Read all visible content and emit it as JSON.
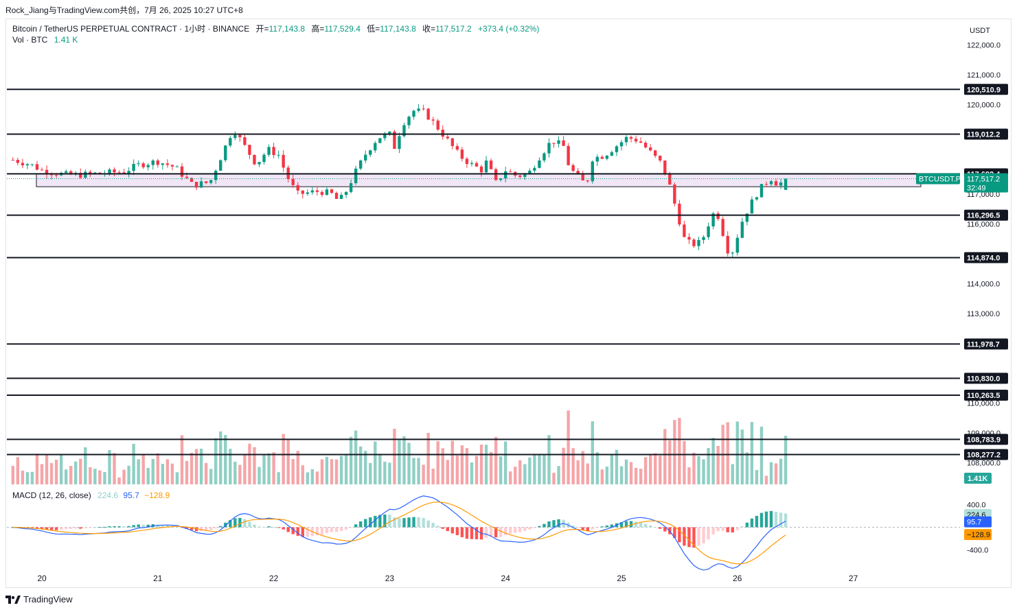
{
  "header": {
    "attribution": "Rock_Jiang与TradingView.com共创，7月 26, 2025 10:27 UTC+8"
  },
  "legend": {
    "symbol": "Bitcoin / TetherUS PERPETUAL CONTRACT · 1小时 · BINANCE",
    "open_label": "开=",
    "open": "117,143.8",
    "high_label": "高=",
    "high": "117,529.4",
    "low_label": "低=",
    "low": "117,143.8",
    "close_label": "收=",
    "close": "117,517.2",
    "change": "+373.4 (+0.32%)",
    "vol_label": "Vol · BTC",
    "vol": "1.41 K"
  },
  "macd_legend": {
    "label": "MACD (12, 26, close)",
    "hist": "224.6",
    "macd": "95.7",
    "signal": "−128.9"
  },
  "price_axis": {
    "currency": "USDT",
    "ticks": [
      {
        "value": 122000,
        "label": "122,000.0"
      },
      {
        "value": 121000,
        "label": "121,000.0"
      },
      {
        "value": 120000,
        "label": "120,000.0"
      },
      {
        "value": 117000,
        "label": "117,000.0"
      },
      {
        "value": 116000,
        "label": "116,000.0"
      },
      {
        "value": 114000,
        "label": "114,000.0"
      },
      {
        "value": 113000,
        "label": "113,000.0"
      },
      {
        "value": 110000,
        "label": "110,000.0"
      },
      {
        "value": 109000,
        "label": "109,000.0"
      },
      {
        "value": 108000,
        "label": "108,000.0"
      }
    ]
  },
  "levels": [
    {
      "value": 120510.9,
      "label": "120,510.9"
    },
    {
      "value": 119012.2,
      "label": "119,012.2"
    },
    {
      "value": 117682.4,
      "label": "117,682.4"
    },
    {
      "value": 116296.5,
      "label": "116,296.5"
    },
    {
      "value": 114874.0,
      "label": "114,874.0"
    },
    {
      "value": 111978.7,
      "label": "111,978.7"
    },
    {
      "value": 110830.0,
      "label": "110,830.0"
    },
    {
      "value": 110263.5,
      "label": "110,263.5"
    },
    {
      "value": 108783.9,
      "label": "108,783.9"
    },
    {
      "value": 108277.2,
      "label": "108,277.2"
    }
  ],
  "current": {
    "symbol_tag": "BTCUSDT.P",
    "price": "117,517.2",
    "countdown": "32:49",
    "vol_tag": "1.41K"
  },
  "macd_axis": {
    "ticks": [
      {
        "value": 400,
        "label": "400.0"
      },
      {
        "value": -400,
        "label": "-400.0"
      }
    ],
    "hist_tag": "224.6",
    "macd_tag": "95.7",
    "signal_tag": "−128.9"
  },
  "time_axis": {
    "labels": [
      {
        "day": 20,
        "label": "20"
      },
      {
        "day": 21,
        "label": "21"
      },
      {
        "day": 22,
        "label": "22"
      },
      {
        "day": 23,
        "label": "23"
      },
      {
        "day": 24,
        "label": "24"
      },
      {
        "day": 25,
        "label": "25"
      },
      {
        "day": 26,
        "label": "26"
      },
      {
        "day": 27,
        "label": "27"
      }
    ]
  },
  "footer": {
    "brand": "TradingView"
  },
  "colors": {
    "up": "#089981",
    "down": "#f23645",
    "vol_up": "#8fcfc4",
    "vol_down": "#f5a5a8",
    "macd": "#2962ff",
    "signal": "#ff9800",
    "zone": "#e6d6f0"
  },
  "chart_data": {
    "type": "candlestick",
    "interval_hours": 1,
    "start_day": 19.75,
    "zone": {
      "from": 117682.4,
      "to": 117250
    },
    "anchors": [
      [
        19.75,
        118150
      ],
      [
        19.9,
        118000
      ],
      [
        20.0,
        117800
      ],
      [
        20.2,
        117650
      ],
      [
        20.35,
        117650
      ],
      [
        20.5,
        117700
      ],
      [
        20.7,
        117750
      ],
      [
        20.85,
        118000
      ],
      [
        21.0,
        118100
      ],
      [
        21.15,
        117900
      ],
      [
        21.3,
        117300
      ],
      [
        21.45,
        117400
      ],
      [
        21.55,
        118300
      ],
      [
        21.65,
        119200
      ],
      [
        21.75,
        118600
      ],
      [
        21.85,
        118000
      ],
      [
        21.95,
        118500
      ],
      [
        22.05,
        118300
      ],
      [
        22.1,
        117700
      ],
      [
        22.2,
        117000
      ],
      [
        22.3,
        117050
      ],
      [
        22.4,
        117100
      ],
      [
        22.5,
        117000
      ],
      [
        22.55,
        116800
      ],
      [
        22.6,
        116900
      ],
      [
        22.7,
        117700
      ],
      [
        22.8,
        118400
      ],
      [
        22.9,
        118900
      ],
      [
        23.0,
        119000
      ],
      [
        23.05,
        118500
      ],
      [
        23.1,
        119300
      ],
      [
        23.2,
        119800
      ],
      [
        23.3,
        119750
      ],
      [
        23.4,
        119300
      ],
      [
        23.5,
        118800
      ],
      [
        23.6,
        118300
      ],
      [
        23.7,
        118000
      ],
      [
        23.8,
        117800
      ],
      [
        23.85,
        118200
      ],
      [
        23.9,
        117300
      ],
      [
        24.0,
        117800
      ],
      [
        24.1,
        117600
      ],
      [
        24.2,
        117700
      ],
      [
        24.3,
        118300
      ],
      [
        24.4,
        118800
      ],
      [
        24.5,
        118600
      ],
      [
        24.55,
        117900
      ],
      [
        24.65,
        117450
      ],
      [
        24.7,
        117350
      ],
      [
        24.75,
        118200
      ],
      [
        24.85,
        118300
      ],
      [
        24.95,
        118600
      ],
      [
        25.05,
        118900
      ],
      [
        25.15,
        118800
      ],
      [
        25.25,
        118400
      ],
      [
        25.35,
        118000
      ],
      [
        25.4,
        117500
      ],
      [
        25.45,
        116800
      ],
      [
        25.5,
        116100
      ],
      [
        25.55,
        115400
      ],
      [
        25.65,
        115300
      ],
      [
        25.7,
        115500
      ],
      [
        25.75,
        116000
      ],
      [
        25.8,
        116400
      ],
      [
        25.85,
        116200
      ],
      [
        25.9,
        115200
      ],
      [
        25.95,
        115000
      ],
      [
        26.0,
        115600
      ],
      [
        26.05,
        116200
      ],
      [
        26.12,
        116700
      ],
      [
        26.18,
        117100
      ],
      [
        26.25,
        117400
      ],
      [
        26.3,
        117550
      ],
      [
        26.35,
        117300
      ],
      [
        26.42,
        117517.2
      ]
    ],
    "volume_scale_ytop": 111400,
    "macd_range": [
      -400,
      400
    ]
  }
}
